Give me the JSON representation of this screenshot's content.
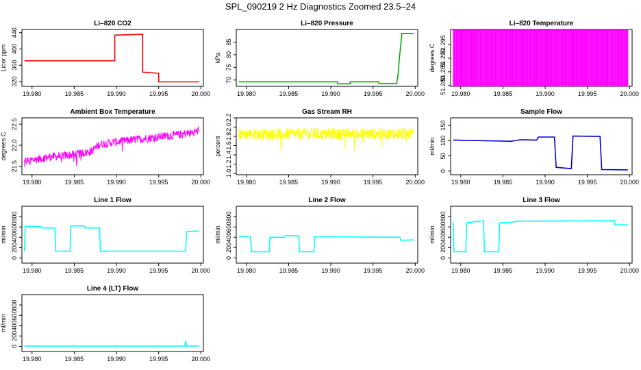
{
  "figure": {
    "title": "SPL_090219  2 Hz Diagnostics Zoomed 23.5–24"
  },
  "chart_data": [
    {
      "type": "line",
      "title": "Li–820 CO2",
      "xlabel": "",
      "ylabel": "Licor ppm",
      "color": "#ee0000",
      "x_ticks": [
        "19.980",
        "19.985",
        "19.990",
        "19.995",
        "20.000"
      ],
      "y_ticks": [
        "320",
        "360",
        "400",
        "440"
      ],
      "xlim": [
        19.9788,
        20.0003
      ],
      "ylim": [
        308,
        448
      ],
      "grid": false,
      "series": [
        {
          "x": [
            19.9791,
            19.9898,
            19.9898,
            19.9931,
            19.9931,
            19.995,
            19.995,
            19.9998
          ],
          "y": [
            371,
            371,
            434,
            436,
            343,
            340,
            319,
            319
          ]
        }
      ]
    },
    {
      "type": "line",
      "title": "Li–820 Pressure",
      "xlabel": "",
      "ylabel": "kPa",
      "color": "#00aa00",
      "x_ticks": [
        "19.980",
        "19.985",
        "19.990",
        "19.995",
        "20.000"
      ],
      "y_ticks": [
        "70",
        "75",
        "80",
        "85"
      ],
      "xlim": [
        19.9788,
        20.0003
      ],
      "ylim": [
        67.5,
        90
      ],
      "grid": false,
      "series": [
        {
          "x": [
            19.9791,
            19.9908,
            19.9908,
            19.9923,
            19.9923,
            19.9957,
            19.9957,
            19.9978,
            19.998,
            19.9981,
            19.9983,
            19.9984,
            19.9998
          ],
          "y": [
            69.3,
            69.3,
            68.5,
            68.5,
            69.3,
            69.3,
            68.6,
            68.6,
            73,
            78,
            84,
            88.4,
            88.4
          ]
        }
      ]
    },
    {
      "type": "line",
      "title": "Li–820 Temperature",
      "xlabel": "",
      "ylabel": "degrees C",
      "color": "#ff00ff",
      "x_ticks": [
        "19.980",
        "19.985",
        "19.990",
        "19.995",
        "20.000"
      ],
      "y_ticks": [
        "51.280",
        "51.285",
        "51.290",
        "51.295"
      ],
      "xlim": [
        19.9788,
        20.0003
      ],
      "ylim": [
        51.2797,
        51.3005
      ],
      "grid": false,
      "series": [
        {
          "x": [
            19.9791,
            19.9998
          ],
          "y": [
            51.2798,
            51.3002
          ],
          "style": "alternating"
        }
      ]
    },
    {
      "type": "line",
      "title": "Ambient Box Temperature",
      "xlabel": "",
      "ylabel": "degrees C",
      "color": "#ff00ff",
      "x_ticks": [
        "19.980",
        "19.985",
        "19.990",
        "19.995",
        "20.000"
      ],
      "y_ticks": [
        "21.5",
        "22.0",
        "22.5"
      ],
      "xlim": [
        19.9788,
        20.0003
      ],
      "ylim": [
        21.3,
        22.65
      ],
      "grid": false,
      "series": [
        {
          "x": [
            19.9791,
            19.982,
            19.985,
            19.987,
            19.988,
            19.99,
            19.993,
            19.995,
            19.997,
            19.999,
            19.9998
          ],
          "y": [
            21.62,
            21.72,
            21.78,
            21.85,
            22.02,
            22.08,
            22.15,
            22.2,
            22.24,
            22.3,
            22.35
          ],
          "noise": 0.1
        }
      ]
    },
    {
      "type": "line",
      "title": "Gas Stream RH",
      "xlabel": "",
      "ylabel": "percent",
      "color": "#ffff00",
      "x_ticks": [
        "19.980",
        "19.985",
        "19.990",
        "19.995",
        "20.000"
      ],
      "y_ticks": [
        "1.0",
        "1.2",
        "1.4",
        "1.6",
        "1.8",
        "2.0",
        "2.2"
      ],
      "xlim": [
        19.9788,
        20.0003
      ],
      "ylim": [
        0.97,
        2.2
      ],
      "grid": false,
      "series": [
        {
          "x": [
            19.9791,
            19.9998
          ],
          "y": [
            1.85,
            1.85
          ],
          "noise": 0.13
        }
      ]
    },
    {
      "type": "line",
      "title": "Sample Flow",
      "xlabel": "",
      "ylabel": "ml/min",
      "color": "#0000cc",
      "x_ticks": [
        "19.980",
        "19.985",
        "19.990",
        "19.995",
        "20.000"
      ],
      "y_ticks": [
        "0",
        "50",
        "100",
        "150"
      ],
      "xlim": [
        19.9788,
        20.0003
      ],
      "ylim": [
        -12,
        175
      ],
      "grid": false,
      "series": [
        {
          "x": [
            19.9791,
            19.986,
            19.987,
            19.989,
            19.9892,
            19.9911,
            19.9913,
            19.9931,
            19.9933,
            19.9965,
            19.9967,
            19.9998
          ],
          "y": [
            102,
            98,
            103,
            102,
            112,
            112,
            12,
            8,
            115,
            114,
            5,
            4
          ]
        }
      ]
    },
    {
      "type": "line",
      "title": "Line 1 Flow",
      "xlabel": "",
      "ylabel": "ml/min",
      "color": "#00ffff",
      "x_ticks": [
        "19.980",
        "19.985",
        "19.990",
        "19.995",
        "20.000"
      ],
      "y_ticks": [
        "0",
        "200",
        "400",
        "600",
        "800"
      ],
      "xlim": [
        19.9788,
        20.0003
      ],
      "ylim": [
        -100,
        1000
      ],
      "grid": false,
      "series": [
        {
          "x": [
            19.9791,
            19.9792,
            19.981,
            19.9811,
            19.9827,
            19.9828,
            19.9845,
            19.9846,
            19.9862,
            19.9863,
            19.988,
            19.9881,
            19.9982,
            19.9983,
            19.9998
          ],
          "y": [
            130,
            610,
            610,
            580,
            580,
            130,
            130,
            620,
            620,
            580,
            580,
            130,
            130,
            510,
            520
          ]
        }
      ]
    },
    {
      "type": "line",
      "title": "Line 2 Flow",
      "xlabel": "",
      "ylabel": "ml/min",
      "color": "#00ffff",
      "x_ticks": [
        "19.980",
        "19.985",
        "19.990",
        "19.995",
        "20.000"
      ],
      "y_ticks": [
        "0",
        "200",
        "400",
        "600",
        "800"
      ],
      "xlim": [
        19.9788,
        20.0003
      ],
      "ylim": [
        -100,
        1000
      ],
      "grid": false,
      "series": [
        {
          "x": [
            19.9791,
            19.9805,
            19.9806,
            19.9827,
            19.9828,
            19.9845,
            19.9846,
            19.9862,
            19.9863,
            19.988,
            19.9881,
            19.9982,
            19.9983,
            19.9998
          ],
          "y": [
            410,
            410,
            120,
            120,
            400,
            400,
            430,
            430,
            120,
            120,
            410,
            400,
            340,
            350
          ]
        }
      ]
    },
    {
      "type": "line",
      "title": "Line 3 Flow",
      "xlabel": "",
      "ylabel": "ml/min",
      "color": "#00ffff",
      "x_ticks": [
        "19.980",
        "19.985",
        "19.990",
        "19.995",
        "20.000"
      ],
      "y_ticks": [
        "0",
        "200",
        "400",
        "600",
        "800"
      ],
      "xlim": [
        19.9788,
        20.0003
      ],
      "ylim": [
        -100,
        1000
      ],
      "grid": false,
      "series": [
        {
          "x": [
            19.9791,
            19.9792,
            19.9793,
            19.9806,
            19.9807,
            19.9827,
            19.9828,
            19.9845,
            19.9846,
            19.9862,
            19.9863,
            19.9982,
            19.9983,
            19.9998
          ],
          "y": [
            700,
            120,
            120,
            120,
            680,
            720,
            120,
            120,
            680,
            690,
            710,
            720,
            640,
            640
          ]
        }
      ]
    },
    {
      "type": "line",
      "title": "Line 4 (LT) Flow",
      "xlabel": "",
      "ylabel": "ml/min",
      "color": "#00ffff",
      "x_ticks": [
        "19.980",
        "19.985",
        "19.990",
        "19.995",
        "20.000"
      ],
      "y_ticks": [
        "0",
        "200",
        "400",
        "600",
        "800"
      ],
      "xlim": [
        19.9788,
        20.0003
      ],
      "ylim": [
        -100,
        1000
      ],
      "grid": false,
      "series": [
        {
          "x": [
            19.9791,
            19.9981,
            19.9982,
            19.9983,
            19.9998
          ],
          "y": [
            5,
            5,
            100,
            5,
            5
          ]
        }
      ]
    }
  ]
}
